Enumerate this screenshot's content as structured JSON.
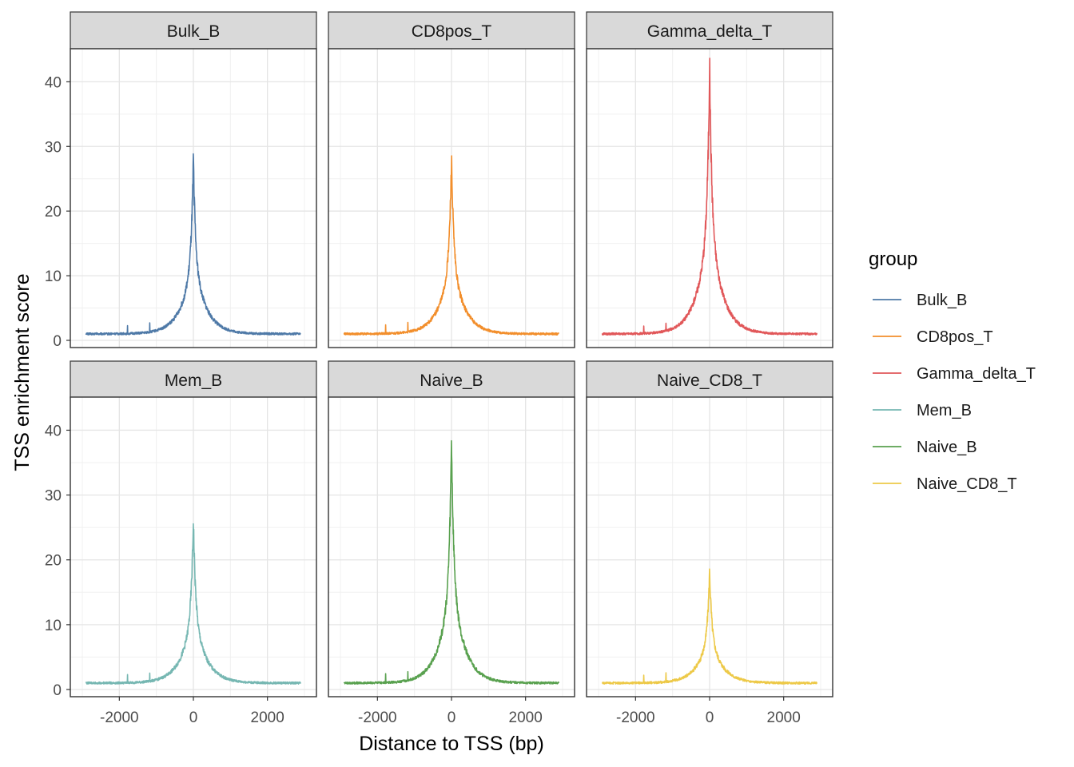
{
  "chart_data": {
    "type": "line",
    "facet_layout": "2x3 grid",
    "xlabel": "Distance to TSS (bp)",
    "ylabel": "TSS enrichment score",
    "xlim": [
      -3000,
      3000
    ],
    "ylim": [
      0,
      44
    ],
    "x_ticks": [
      -2000,
      0,
      2000
    ],
    "x_tick_labels": [
      "-2000",
      "0",
      "2000"
    ],
    "y_ticks": [
      0,
      10,
      20,
      30,
      40
    ],
    "y_tick_labels": [
      "0",
      "10",
      "20",
      "30",
      "40"
    ],
    "grid": true,
    "legend": {
      "title": "group",
      "placement": "right"
    },
    "series": [
      {
        "name": "Bulk_B",
        "color": "#4e79a7",
        "peak_x": 0,
        "peak_y": 28,
        "shoulder_x": 200,
        "shoulder_y": 12,
        "edge_y": 1
      },
      {
        "name": "CD8pos_T",
        "color": "#f28e2b",
        "peak_x": 0,
        "peak_y": 28.5,
        "shoulder_x": 200,
        "shoulder_y": 12.5,
        "edge_y": 1
      },
      {
        "name": "Gamma_delta_T",
        "color": "#e15759",
        "peak_x": 0,
        "peak_y": 43,
        "shoulder_x": 200,
        "shoulder_y": 18.5,
        "edge_y": 1
      },
      {
        "name": "Mem_B",
        "color": "#76b7b2",
        "peak_x": 0,
        "peak_y": 26.5,
        "shoulder_x": 200,
        "shoulder_y": 11.5,
        "edge_y": 1
      },
      {
        "name": "Naive_B",
        "color": "#59a14f",
        "peak_x": 0,
        "peak_y": 39,
        "shoulder_x": 200,
        "shoulder_y": 15.5,
        "edge_y": 1
      },
      {
        "name": "Naive_CD8_T",
        "color": "#edc948",
        "peak_x": 0,
        "peak_y": 18.5,
        "shoulder_x": 200,
        "shoulder_y": 8.5,
        "edge_y": 1
      }
    ]
  }
}
